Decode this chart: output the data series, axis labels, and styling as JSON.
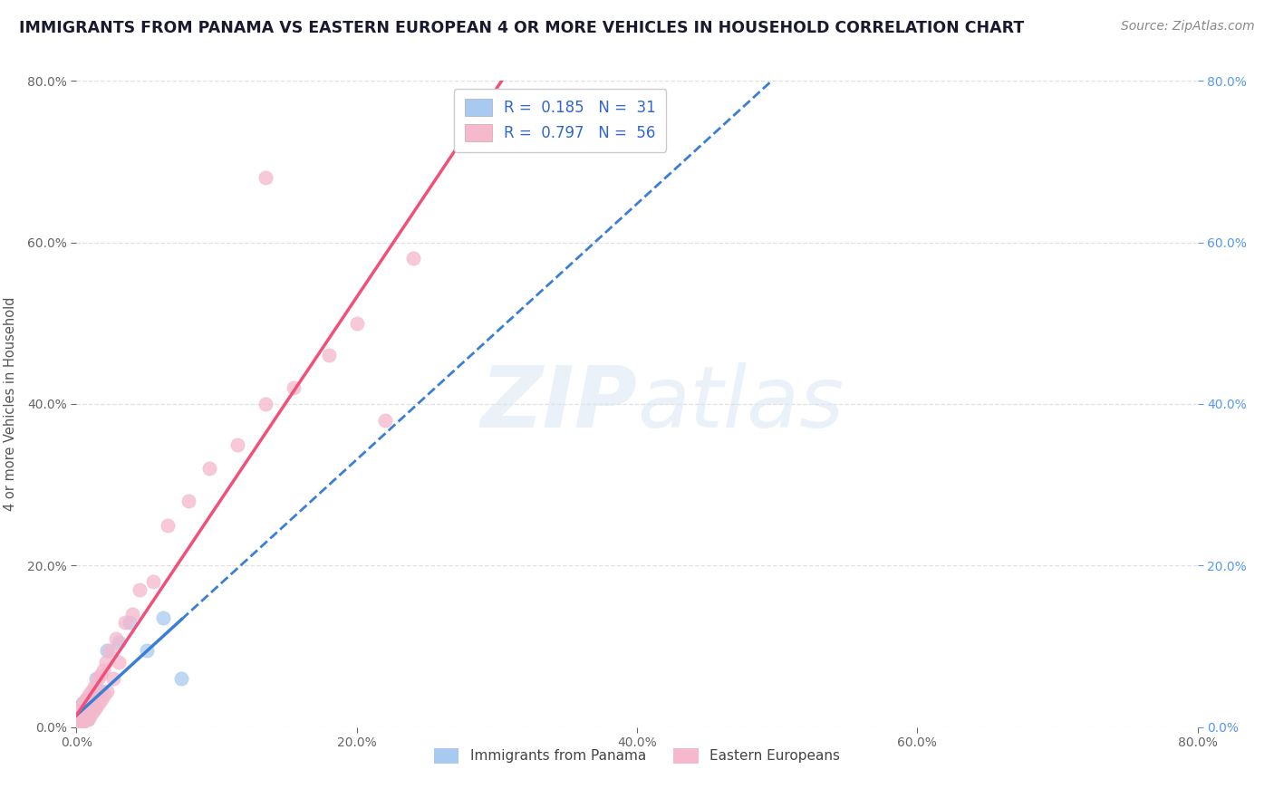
{
  "title": "IMMIGRANTS FROM PANAMA VS EASTERN EUROPEAN 4 OR MORE VEHICLES IN HOUSEHOLD CORRELATION CHART",
  "source": "Source: ZipAtlas.com",
  "ylabel": "4 or more Vehicles in Household",
  "xlim": [
    0,
    0.8
  ],
  "ylim": [
    0,
    0.8
  ],
  "legend_labels": [
    "Immigrants from Panama",
    "Eastern Europeans"
  ],
  "legend_R": [
    "0.185",
    "0.797"
  ],
  "legend_N": [
    "31",
    "56"
  ],
  "panama_color": "#a8caf0",
  "eastern_color": "#f5b8cc",
  "panama_line_color": "#3a7fd5",
  "eastern_line_color": "#f0507a",
  "panama_scatter_x": [
    0.001,
    0.001,
    0.002,
    0.002,
    0.002,
    0.003,
    0.003,
    0.003,
    0.004,
    0.004,
    0.004,
    0.005,
    0.005,
    0.005,
    0.006,
    0.006,
    0.007,
    0.007,
    0.008,
    0.008,
    0.009,
    0.01,
    0.012,
    0.014,
    0.018,
    0.022,
    0.03,
    0.038,
    0.05,
    0.062,
    0.075
  ],
  "panama_scatter_y": [
    0.005,
    0.012,
    0.008,
    0.018,
    0.025,
    0.005,
    0.015,
    0.022,
    0.01,
    0.018,
    0.03,
    0.008,
    0.015,
    0.025,
    0.01,
    0.02,
    0.012,
    0.035,
    0.01,
    0.028,
    0.015,
    0.035,
    0.025,
    0.06,
    0.045,
    0.095,
    0.105,
    0.13,
    0.095,
    0.135,
    0.06
  ],
  "eastern_scatter_x": [
    0.001,
    0.001,
    0.001,
    0.002,
    0.002,
    0.002,
    0.003,
    0.003,
    0.003,
    0.004,
    0.004,
    0.004,
    0.005,
    0.005,
    0.005,
    0.006,
    0.006,
    0.007,
    0.007,
    0.008,
    0.008,
    0.009,
    0.009,
    0.01,
    0.01,
    0.011,
    0.012,
    0.013,
    0.014,
    0.015,
    0.016,
    0.017,
    0.018,
    0.019,
    0.02,
    0.021,
    0.022,
    0.024,
    0.026,
    0.028,
    0.03,
    0.035,
    0.04,
    0.045,
    0.055,
    0.065,
    0.08,
    0.095,
    0.115,
    0.135,
    0.155,
    0.18,
    0.2,
    0.22,
    0.24,
    0.135
  ],
  "eastern_scatter_y": [
    0.005,
    0.01,
    0.015,
    0.005,
    0.012,
    0.02,
    0.005,
    0.015,
    0.025,
    0.008,
    0.015,
    0.022,
    0.008,
    0.018,
    0.03,
    0.01,
    0.025,
    0.012,
    0.035,
    0.01,
    0.03,
    0.012,
    0.04,
    0.015,
    0.035,
    0.045,
    0.02,
    0.05,
    0.025,
    0.06,
    0.03,
    0.065,
    0.035,
    0.07,
    0.04,
    0.08,
    0.045,
    0.095,
    0.06,
    0.11,
    0.08,
    0.13,
    0.14,
    0.17,
    0.18,
    0.25,
    0.28,
    0.32,
    0.35,
    0.4,
    0.42,
    0.46,
    0.5,
    0.38,
    0.58,
    0.68
  ],
  "title_color": "#1a1a2e",
  "title_fontsize": 12.5,
  "axis_label_color": "#555555",
  "tick_color": "#666666",
  "right_tick_color": "#5599ee",
  "grid_color": "#dddddd",
  "background_color": "#ffffff",
  "watermark_color": "#dce8f5",
  "watermark_alpha": 0.6,
  "panama_line_slope": 4.5,
  "panama_line_intercept": 0.006,
  "eastern_line_slope": 3.35,
  "eastern_line_intercept": 0.005
}
